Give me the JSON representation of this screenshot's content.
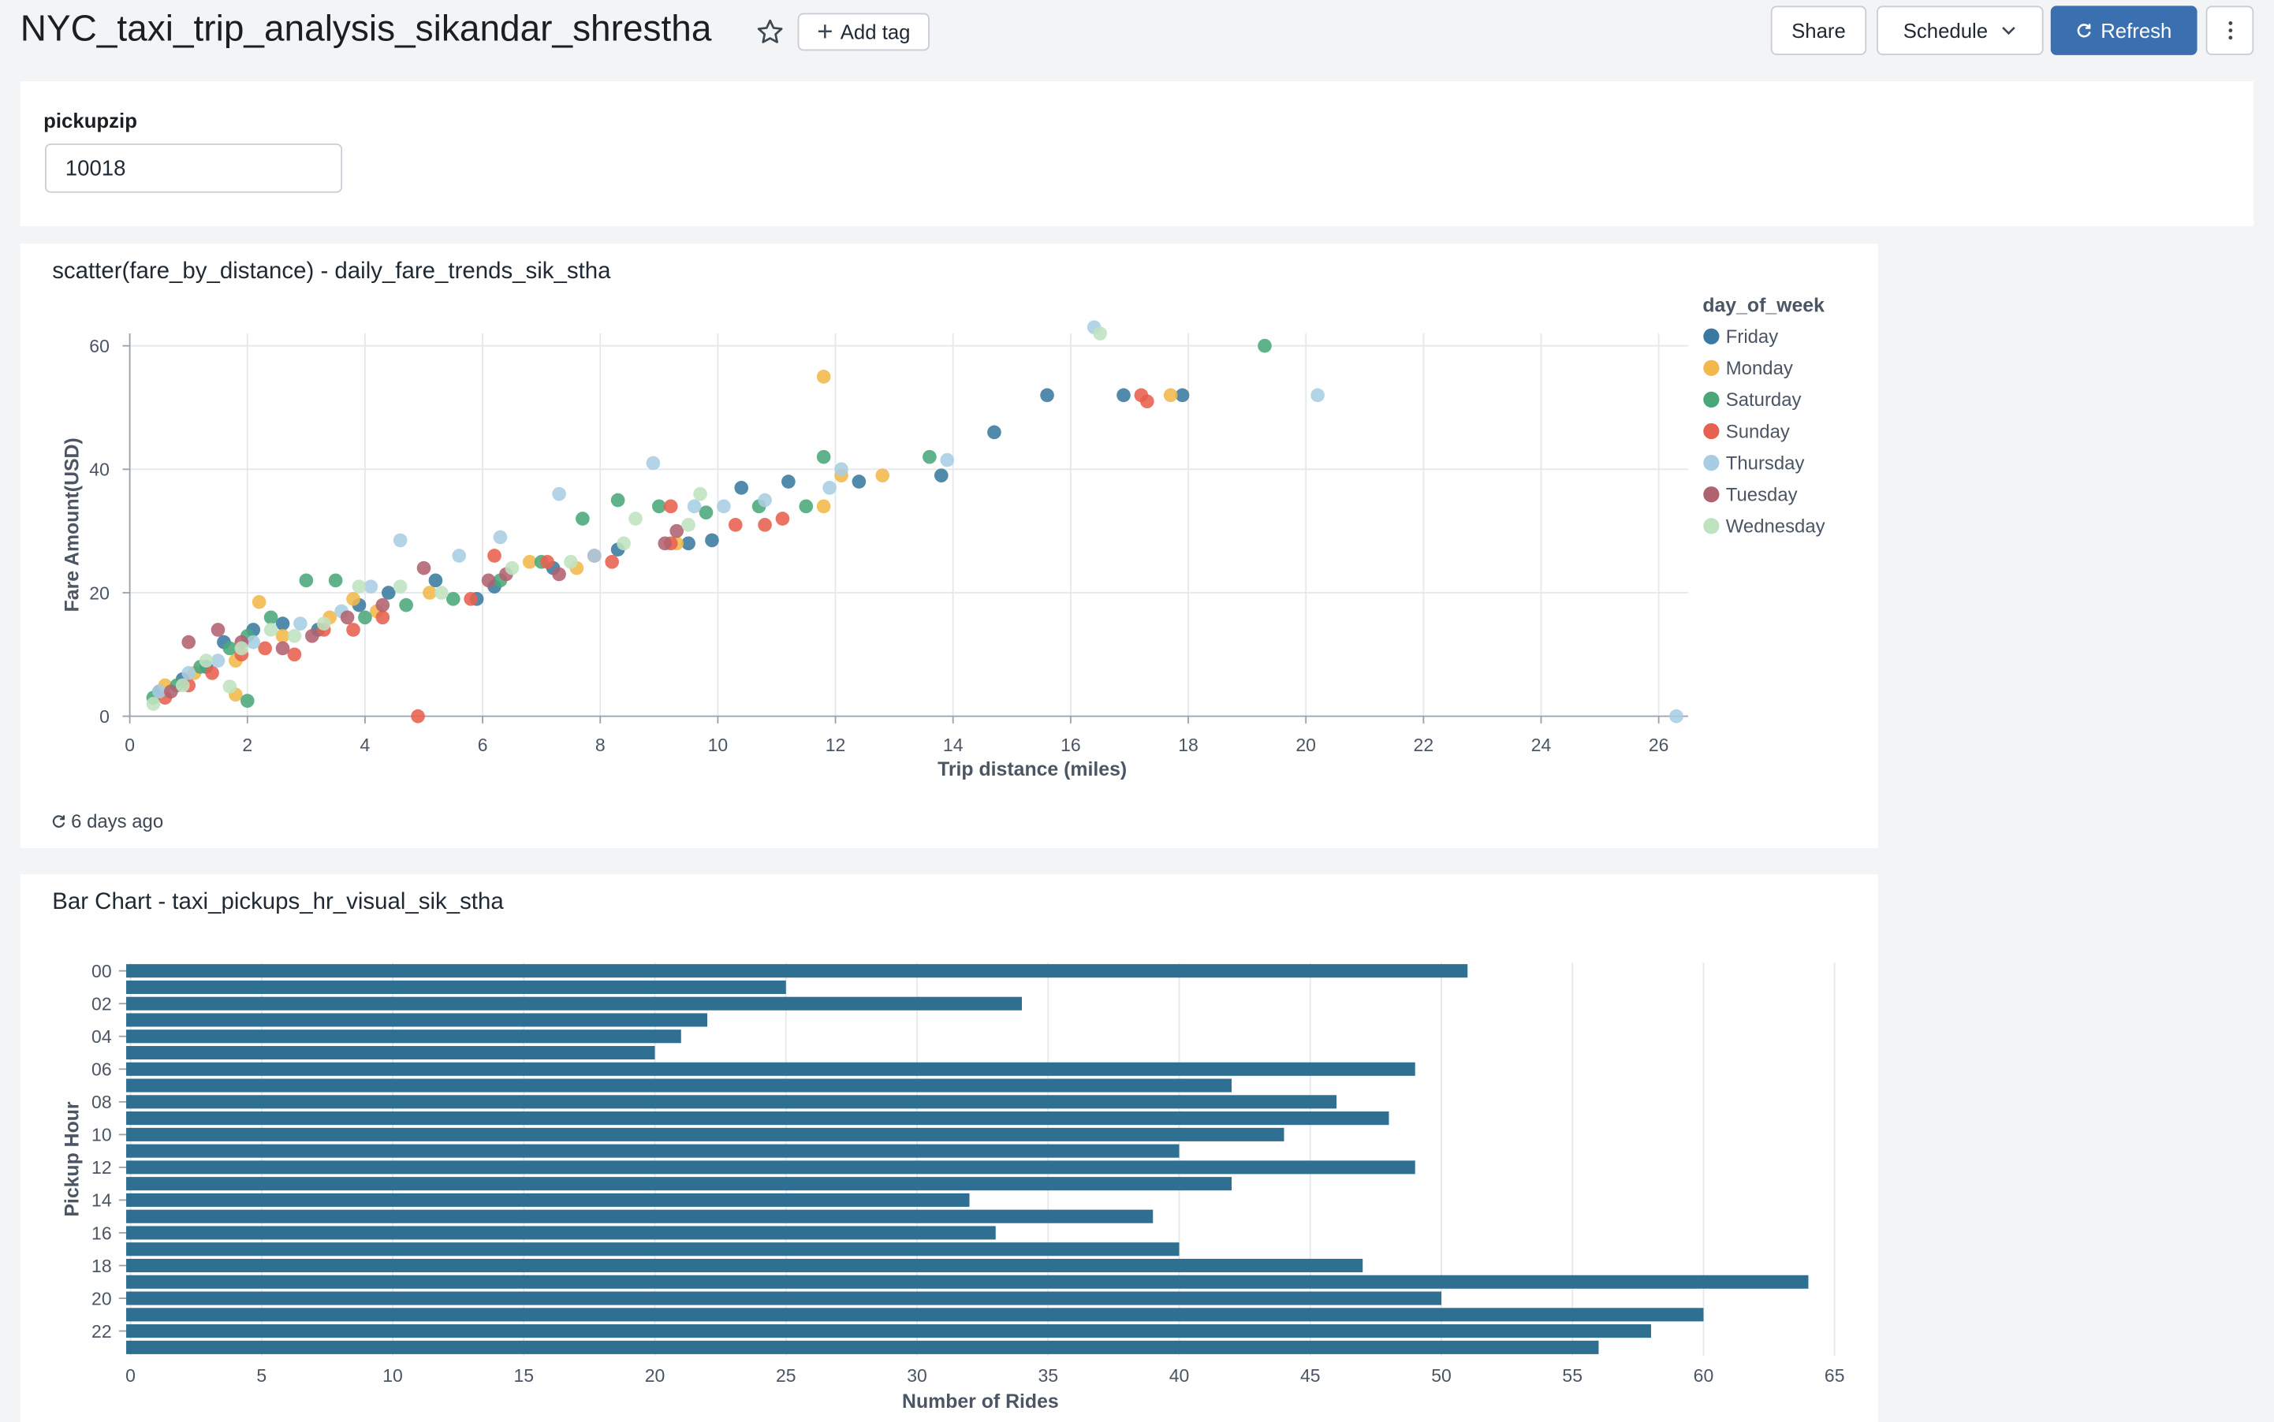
{
  "header": {
    "title": "NYC_taxi_trip_analysis_sikandar_shrestha",
    "add_tag_label": "Add tag",
    "share_label": "Share",
    "schedule_label": "Schedule",
    "refresh_label": "Refresh"
  },
  "filter": {
    "label": "pickupzip",
    "value": "10018"
  },
  "widgets": {
    "scatter_title": "scatter(fare_by_distance) - daily_fare_trends_sik_stha",
    "scatter_status": "6 days ago",
    "bar_title": "Bar Chart - taxi_pickups_hr_visual_sik_stha"
  },
  "colors": {
    "accent": "#3a6fb0",
    "bar": "#2f6f91"
  },
  "chart_data": [
    {
      "type": "scatter",
      "xlabel": "Trip distance (miles)",
      "ylabel": "Fare Amount(USD)",
      "xlim": [
        0,
        26.5
      ],
      "ylim": [
        0,
        62
      ],
      "xticks": [
        0,
        2,
        4,
        6,
        8,
        10,
        12,
        14,
        16,
        18,
        20,
        22,
        24,
        26
      ],
      "yticks": [
        0,
        20,
        40,
        60
      ],
      "grid": true,
      "legend_title": "day_of_week",
      "legend_position": "right",
      "series": [
        {
          "name": "Friday",
          "color": "#3a7aa1",
          "points": [
            [
              0.5,
              4
            ],
            [
              0.9,
              6
            ],
            [
              1.3,
              8
            ],
            [
              1.6,
              12
            ],
            [
              2.1,
              14
            ],
            [
              2.6,
              15
            ],
            [
              3.2,
              14
            ],
            [
              3.9,
              18
            ],
            [
              4.4,
              20
            ],
            [
              5.2,
              22
            ],
            [
              5.9,
              19
            ],
            [
              6.2,
              21
            ],
            [
              7.2,
              24
            ],
            [
              8.3,
              27
            ],
            [
              9.5,
              28
            ],
            [
              10.4,
              37
            ],
            [
              11.2,
              38
            ],
            [
              12.4,
              38
            ],
            [
              13.8,
              39
            ],
            [
              14.7,
              46
            ],
            [
              15.6,
              52
            ],
            [
              16.9,
              52
            ],
            [
              17.9,
              52
            ],
            [
              9.9,
              28.5
            ]
          ]
        },
        {
          "name": "Monday",
          "color": "#f2b84b",
          "points": [
            [
              0.6,
              5
            ],
            [
              1.1,
              7
            ],
            [
              1.8,
              9
            ],
            [
              2.2,
              18.5
            ],
            [
              2.6,
              13
            ],
            [
              3.4,
              16
            ],
            [
              3.8,
              19
            ],
            [
              4.2,
              17
            ],
            [
              5.1,
              20
            ],
            [
              6.8,
              25
            ],
            [
              7.6,
              24
            ],
            [
              9.3,
              28
            ],
            [
              11.8,
              55
            ],
            [
              11.8,
              34
            ],
            [
              12.1,
              39
            ],
            [
              12.8,
              39
            ],
            [
              17.7,
              52
            ],
            [
              1.8,
              3.5
            ]
          ]
        },
        {
          "name": "Saturday",
          "color": "#4aa77a",
          "points": [
            [
              0.4,
              3
            ],
            [
              0.8,
              5
            ],
            [
              1.2,
              8
            ],
            [
              1.7,
              11
            ],
            [
              2.0,
              13
            ],
            [
              2.4,
              16
            ],
            [
              3.0,
              22
            ],
            [
              3.5,
              22
            ],
            [
              4.0,
              16
            ],
            [
              4.7,
              18
            ],
            [
              5.5,
              19
            ],
            [
              6.3,
              22
            ],
            [
              7.0,
              25
            ],
            [
              7.7,
              32
            ],
            [
              8.3,
              35
            ],
            [
              9.0,
              34
            ],
            [
              9.8,
              33
            ],
            [
              10.7,
              34
            ],
            [
              11.5,
              34
            ],
            [
              11.8,
              42
            ],
            [
              13.6,
              42
            ],
            [
              19.3,
              60
            ],
            [
              2.0,
              2.5
            ]
          ]
        },
        {
          "name": "Sunday",
          "color": "#e8604f",
          "points": [
            [
              0.6,
              3
            ],
            [
              1.0,
              5
            ],
            [
              1.4,
              7
            ],
            [
              1.9,
              10
            ],
            [
              2.3,
              11
            ],
            [
              2.8,
              10
            ],
            [
              3.3,
              14
            ],
            [
              3.8,
              14
            ],
            [
              4.3,
              16
            ],
            [
              4.9,
              0
            ],
            [
              5.8,
              19
            ],
            [
              6.2,
              26
            ],
            [
              7.1,
              25
            ],
            [
              7.9,
              26
            ],
            [
              8.2,
              25
            ],
            [
              9.2,
              28
            ],
            [
              9.2,
              34
            ],
            [
              10.3,
              31
            ],
            [
              10.8,
              31
            ],
            [
              11.1,
              32
            ],
            [
              17.2,
              52
            ],
            [
              17.3,
              51
            ]
          ]
        },
        {
          "name": "Thursday",
          "color": "#a8cde3",
          "points": [
            [
              0.5,
              4
            ],
            [
              1.0,
              7
            ],
            [
              1.5,
              9
            ],
            [
              2.1,
              12
            ],
            [
              2.9,
              15
            ],
            [
              3.6,
              17
            ],
            [
              4.1,
              21
            ],
            [
              4.6,
              28.5
            ],
            [
              5.6,
              26
            ],
            [
              6.3,
              29
            ],
            [
              7.3,
              36
            ],
            [
              7.9,
              26
            ],
            [
              8.9,
              41
            ],
            [
              9.6,
              34
            ],
            [
              10.1,
              34
            ],
            [
              10.8,
              35
            ],
            [
              11.9,
              37
            ],
            [
              12.1,
              40
            ],
            [
              13.9,
              41.5
            ],
            [
              16.4,
              63
            ],
            [
              20.2,
              52
            ],
            [
              26.3,
              0
            ]
          ]
        },
        {
          "name": "Tuesday",
          "color": "#b0626f",
          "points": [
            [
              0.7,
              4
            ],
            [
              1.0,
              12
            ],
            [
              1.5,
              14
            ],
            [
              1.9,
              12
            ],
            [
              2.6,
              11
            ],
            [
              3.1,
              13
            ],
            [
              3.7,
              16
            ],
            [
              4.3,
              18
            ],
            [
              5.0,
              24
            ],
            [
              6.1,
              22
            ],
            [
              6.4,
              23
            ],
            [
              7.3,
              23
            ],
            [
              9.3,
              30
            ],
            [
              9.1,
              28
            ]
          ]
        },
        {
          "name": "Wednesday",
          "color": "#bfe3c0",
          "points": [
            [
              0.4,
              2
            ],
            [
              0.9,
              5
            ],
            [
              1.3,
              9
            ],
            [
              1.9,
              11
            ],
            [
              2.4,
              14
            ],
            [
              2.8,
              13
            ],
            [
              3.3,
              15
            ],
            [
              3.9,
              21
            ],
            [
              4.6,
              21
            ],
            [
              5.3,
              20
            ],
            [
              6.5,
              24
            ],
            [
              7.5,
              25
            ],
            [
              8.4,
              28
            ],
            [
              8.6,
              32
            ],
            [
              9.5,
              31
            ],
            [
              9.7,
              36
            ],
            [
              16.5,
              62
            ],
            [
              1.7,
              4.8
            ]
          ]
        }
      ]
    },
    {
      "type": "bar",
      "orientation": "horizontal",
      "xlabel": "Number of Rides",
      "ylabel": "Pickup Hour",
      "xlim": [
        0,
        65
      ],
      "xticks": [
        0,
        5,
        10,
        15,
        20,
        25,
        30,
        35,
        40,
        45,
        50,
        55,
        60,
        65
      ],
      "categories": [
        "00",
        "01",
        "02",
        "03",
        "04",
        "05",
        "06",
        "07",
        "08",
        "09",
        "10",
        "11",
        "12",
        "13",
        "14",
        "15",
        "16",
        "17",
        "18",
        "19",
        "20",
        "21",
        "22",
        "23"
      ],
      "tick_labels": [
        "00",
        "02",
        "04",
        "06",
        "08",
        "10",
        "12",
        "14",
        "16",
        "18",
        "20",
        "22"
      ],
      "values": [
        51,
        25,
        34,
        22,
        21,
        20,
        49,
        42,
        46,
        48,
        44,
        40,
        49,
        42,
        32,
        39,
        33,
        40,
        47,
        64,
        50,
        60,
        58,
        56
      ],
      "grid": true
    }
  ]
}
